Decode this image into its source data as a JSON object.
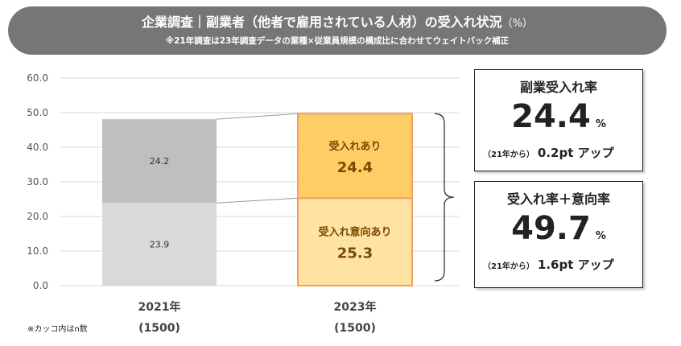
{
  "header": {
    "title": "企業調査｜副業者（他者で雇用されている人材）の受入れ状況",
    "title_unit": "（%）",
    "subtitle": "※21年調査は23年調査データの業種×従業員規模の構成比に合わせてウェイトバック補正"
  },
  "chart_data": {
    "type": "bar",
    "stacked": true,
    "categories": [
      "2021年",
      "2023年"
    ],
    "category_counts": [
      "(1500)",
      "(1500)"
    ],
    "ylim": [
      0,
      60
    ],
    "yticks": [
      "0.0",
      "10.0",
      "20.0",
      "30.0",
      "40.0",
      "50.0",
      "60.0"
    ],
    "grid": true,
    "series": [
      {
        "values": [
          23.9,
          25.3
        ],
        "labels": [
          "23.9",
          "受入れ意向あり"
        ],
        "value_labels": [
          "23.9",
          "25.3"
        ],
        "colors": [
          "#d9d9d9",
          "#ffe3a3"
        ]
      },
      {
        "values": [
          24.2,
          24.4
        ],
        "labels": [
          "24.2",
          "受入れあり"
        ],
        "value_labels": [
          "24.2",
          "24.4"
        ],
        "colors": [
          "#bfbfbf",
          "#ffcd66"
        ]
      }
    ]
  },
  "boxes": [
    {
      "label": "副業受入れ率",
      "value": "24.4",
      "unit": "%",
      "since": "（21年から）",
      "delta": "0.2pt アップ"
    },
    {
      "label": "受入れ率＋意向率",
      "value": "49.7",
      "unit": "%",
      "since": "（21年から）",
      "delta": "1.6pt アップ"
    }
  ],
  "note": "※カッコ内はn数",
  "colors": {
    "header_bg": "#767676",
    "bar_border_2023": "#f4a060",
    "axis_text": "#555555"
  }
}
